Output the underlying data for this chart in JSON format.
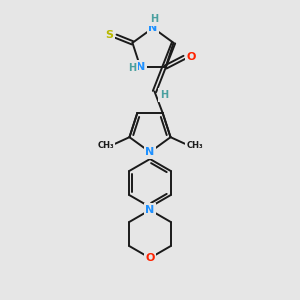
{
  "bg_color": "#e6e6e6",
  "bond_color": "#1a1a1a",
  "bond_width": 1.4,
  "atom_colors": {
    "N": "#1e90ff",
    "O": "#ff2200",
    "S": "#b8b800",
    "C": "#1a1a1a",
    "H": "#4aa0a0"
  },
  "figsize": [
    3.0,
    3.0
  ],
  "dpi": 100
}
